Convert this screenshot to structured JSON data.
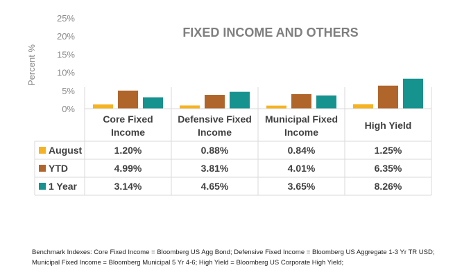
{
  "chart_data": {
    "type": "bar",
    "title": "FIXED INCOME AND OTHERS",
    "ylabel": "Percent %",
    "ylim": [
      0,
      25
    ],
    "yticks": [
      0,
      5,
      10,
      15,
      20,
      25
    ],
    "ytick_labels": [
      "0%",
      "5%",
      "10%",
      "15%",
      "20%",
      "25%"
    ],
    "categories": [
      [
        "Core Fixed",
        "Income"
      ],
      [
        "Defensive Fixed",
        "Income"
      ],
      [
        "Municipal Fixed",
        "Income"
      ],
      [
        "High Yield"
      ]
    ],
    "series": [
      {
        "name": "August",
        "color": "#f5b324",
        "values": [
          1.2,
          0.88,
          0.84,
          1.25
        ],
        "labels": [
          "1.20%",
          "0.88%",
          "0.84%",
          "1.25%"
        ]
      },
      {
        "name": "YTD",
        "color": "#b0652b",
        "values": [
          4.99,
          3.81,
          4.01,
          6.35
        ],
        "labels": [
          "4.99%",
          "3.81%",
          "4.01%",
          "6.35%"
        ]
      },
      {
        "name": "1 Year",
        "color": "#16928f",
        "values": [
          3.14,
          4.65,
          3.65,
          8.26
        ],
        "labels": [
          "3.14%",
          "4.65%",
          "3.65%",
          "8.26%"
        ]
      }
    ],
    "grid": false,
    "legend": "data-table"
  },
  "footnote": [
    "Benchmark Indexes: Core Fixed Income = Bloomberg US Agg Bond; Defensive Fixed Income = Bloomberg US Aggregate 1-3 Yr TR USD;",
    "Municipal Fixed Income = Bloomberg Municipal 5 Yr 4-6; High Yield = Bloomberg US Corporate High Yield;"
  ]
}
